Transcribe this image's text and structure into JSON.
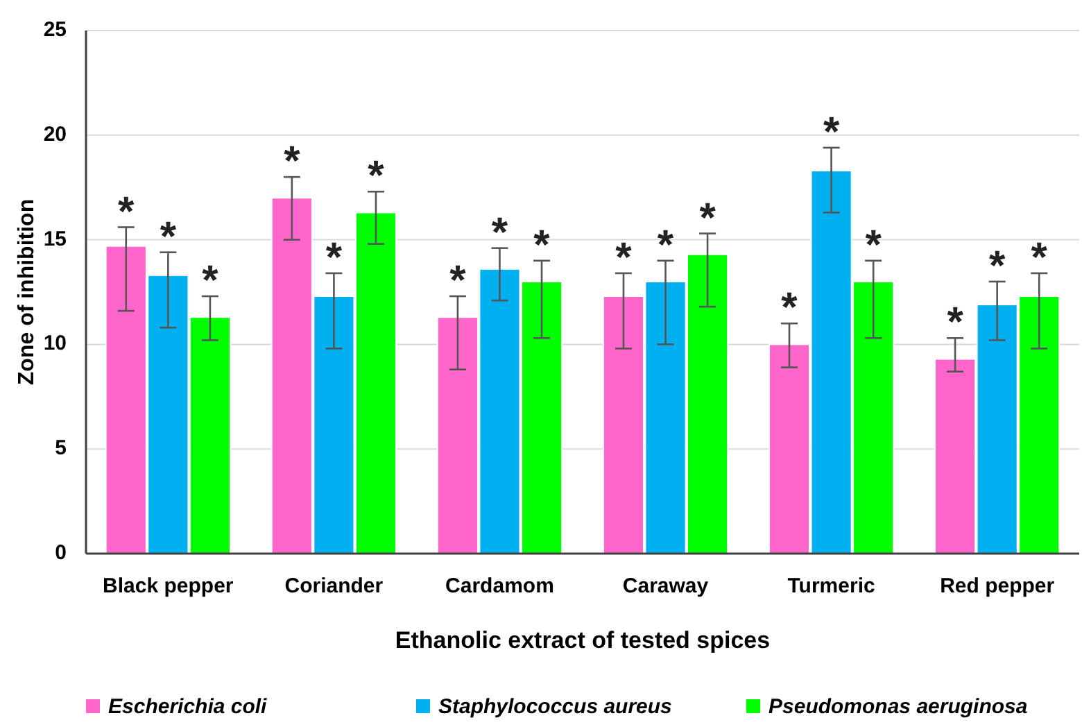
{
  "chart_data": {
    "type": "bar",
    "xlabel": "Ethanolic extract of tested spices",
    "ylabel": "Zone of inhibition",
    "categories": [
      "Black pepper",
      "Coriander",
      "Cardamom",
      "Caraway",
      "Turmeric",
      "Red pepper"
    ],
    "series": [
      {
        "name": "Escherichia coli",
        "color": "#ff66cc",
        "values": [
          14.7,
          17.0,
          11.3,
          12.3,
          10.0,
          9.3
        ],
        "errors": [
          [
            11.6,
            15.6
          ],
          [
            15.0,
            18.0
          ],
          [
            8.8,
            12.3
          ],
          [
            9.8,
            13.4
          ],
          [
            8.9,
            11.0
          ],
          [
            8.7,
            10.3
          ]
        ]
      },
      {
        "name": "Staphylococcus aureus",
        "color": "#00b0f0",
        "values": [
          13.3,
          12.3,
          13.6,
          13.0,
          18.3,
          11.9
        ],
        "errors": [
          [
            10.8,
            14.4
          ],
          [
            9.8,
            13.4
          ],
          [
            12.1,
            14.6
          ],
          [
            10.0,
            14.0
          ],
          [
            16.3,
            19.4
          ],
          [
            10.2,
            13.0
          ]
        ]
      },
      {
        "name": "Pseudomonas aeruginosa",
        "color": "#00ff00",
        "values": [
          11.3,
          16.3,
          13.0,
          14.3,
          13.0,
          12.3
        ],
        "errors": [
          [
            10.2,
            12.3
          ],
          [
            14.8,
            17.3
          ],
          [
            10.3,
            14.0
          ],
          [
            11.8,
            15.3
          ],
          [
            10.3,
            14.0
          ],
          [
            9.8,
            13.4
          ]
        ]
      }
    ],
    "ylim": [
      0,
      25
    ],
    "yticks": [
      0,
      5,
      10,
      15,
      20,
      25
    ],
    "grid": "y",
    "legend": "bottom",
    "annotations": [
      "*",
      "*",
      "*",
      "*",
      "*",
      "*",
      "*",
      "*",
      "*",
      "*",
      "*",
      "*",
      "*",
      "*",
      "*",
      "*",
      "*",
      "*"
    ]
  }
}
